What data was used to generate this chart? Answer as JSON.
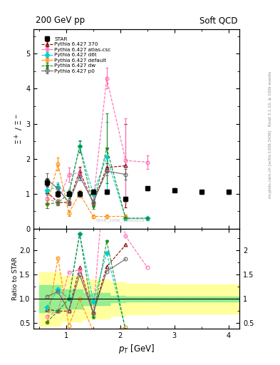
{
  "title_left": "200 GeV pp",
  "title_right": "Soft QCD",
  "ylabel_main": "$\\Xi^+$ / $\\Xi^-$",
  "ylabel_ratio": "Ratio to STAR",
  "xlabel": "$p_T$ [GeV]",
  "right_label_top": "Rivet 3.1.10, ≥ 100k events",
  "right_label_bot": "mcplots.cern.ch [arXiv:1306.3436]",
  "watermark": "STAR_2006_S6860818",
  "star_x": [
    0.65,
    0.85,
    1.05,
    1.25,
    1.5,
    1.75,
    2.1,
    2.5,
    3.0,
    3.5,
    4.0
  ],
  "star_y": [
    1.33,
    1.0,
    1.0,
    1.0,
    1.05,
    1.05,
    0.85,
    1.15,
    1.1,
    1.05,
    1.05
  ],
  "star_yerr": [
    0.1,
    0.08,
    0.07,
    0.07,
    0.06,
    0.06,
    0.05,
    0.05,
    0.05,
    0.05,
    0.05
  ],
  "p370_x": [
    0.65,
    0.85,
    1.05,
    1.25,
    1.5,
    1.75,
    2.1
  ],
  "p370_y": [
    1.05,
    0.75,
    0.75,
    1.65,
    0.75,
    1.75,
    1.8
  ],
  "p370_yerr": [
    0.15,
    0.08,
    0.08,
    0.12,
    0.08,
    0.12,
    1.2
  ],
  "atlas_x": [
    0.65,
    0.85,
    1.05,
    1.25,
    1.5,
    1.75,
    2.1,
    2.5
  ],
  "atlas_y": [
    0.85,
    0.75,
    1.55,
    1.6,
    0.75,
    4.3,
    1.95,
    1.9
  ],
  "atlas_yerr": [
    0.15,
    0.08,
    0.2,
    0.12,
    0.08,
    0.3,
    1.2,
    0.2
  ],
  "d6t_x": [
    0.65,
    0.85,
    1.05,
    1.25,
    1.5,
    1.75,
    2.1,
    2.5
  ],
  "d6t_y": [
    1.1,
    1.2,
    1.0,
    2.35,
    1.0,
    2.05,
    0.3,
    0.3
  ],
  "d6t_yerr": [
    0.15,
    0.12,
    0.08,
    0.15,
    0.08,
    1.0,
    0.05,
    0.05
  ],
  "default_x": [
    0.65,
    0.85,
    1.05,
    1.25,
    1.5,
    1.75,
    2.1
  ],
  "default_y": [
    0.7,
    1.85,
    0.45,
    1.0,
    0.35,
    0.35,
    0.35
  ],
  "default_yerr": [
    0.12,
    0.18,
    0.08,
    0.1,
    0.05,
    0.05,
    0.05
  ],
  "dw_x": [
    0.65,
    0.85,
    1.05,
    1.25,
    1.5,
    1.75,
    2.1,
    2.5
  ],
  "dw_y": [
    0.7,
    0.75,
    1.0,
    2.35,
    0.65,
    2.3,
    0.3,
    0.3
  ],
  "dw_yerr": [
    0.12,
    0.08,
    0.12,
    0.18,
    0.08,
    1.0,
    0.05,
    0.05
  ],
  "p0_x": [
    0.65,
    0.85,
    1.05,
    1.25,
    1.5,
    1.75,
    2.1
  ],
  "p0_y": [
    1.4,
    1.15,
    0.75,
    1.5,
    0.75,
    1.65,
    1.55
  ],
  "p0_yerr": [
    0.18,
    0.12,
    0.08,
    0.12,
    0.08,
    0.12,
    0.15
  ],
  "band_edges": [
    0.5,
    0.7,
    0.9,
    1.1,
    1.3,
    1.55,
    1.8,
    2.1,
    2.4,
    2.7,
    3.0,
    3.3,
    3.6,
    3.9,
    4.2
  ],
  "band_green_lo": [
    0.72,
    0.72,
    0.8,
    0.8,
    0.88,
    0.88,
    0.93,
    0.95,
    0.95,
    0.95,
    0.95,
    0.95,
    0.95,
    0.95
  ],
  "band_green_hi": [
    1.28,
    1.28,
    1.2,
    1.2,
    1.12,
    1.12,
    1.07,
    1.05,
    1.05,
    1.05,
    1.05,
    1.05,
    1.05,
    1.05
  ],
  "band_yellow_lo": [
    0.45,
    0.45,
    0.53,
    0.53,
    0.6,
    0.6,
    0.65,
    0.68,
    0.68,
    0.7,
    0.7,
    0.7,
    0.7,
    0.7
  ],
  "band_yellow_hi": [
    1.55,
    1.55,
    1.47,
    1.47,
    1.4,
    1.4,
    1.35,
    1.32,
    1.32,
    1.3,
    1.3,
    1.3,
    1.3,
    1.3
  ],
  "color_star": "#000000",
  "color_370": "#8b0000",
  "color_atlas": "#ff69b4",
  "color_d6t": "#00ced1",
  "color_default": "#ff8c00",
  "color_dw": "#228b22",
  "color_p0": "#696969"
}
